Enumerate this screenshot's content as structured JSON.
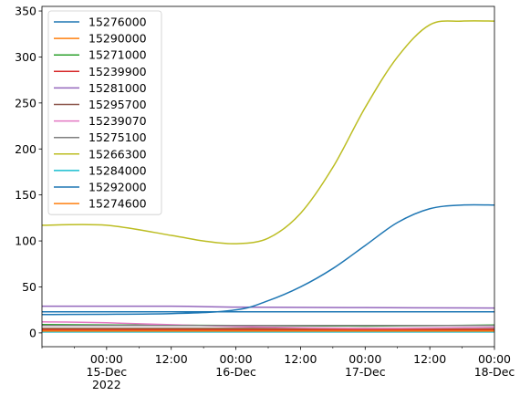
{
  "chart_data": {
    "type": "line",
    "title": "",
    "xlabel": "",
    "ylabel": "",
    "x_range": [
      "2022-12-14 12:00",
      "2022-12-18 00:00"
    ],
    "ylim": [
      -15,
      355
    ],
    "y_ticks": [
      0,
      50,
      100,
      150,
      200,
      250,
      300,
      350
    ],
    "y_tick_labels": [
      "0",
      "50",
      "100",
      "150",
      "200",
      "250",
      "300",
      "350"
    ],
    "x_ticks": [
      {
        "x": "2022-12-15 00:00",
        "lines": [
          "00:00",
          "15-Dec",
          "2022"
        ]
      },
      {
        "x": "2022-12-15 12:00",
        "lines": [
          "12:00"
        ]
      },
      {
        "x": "2022-12-16 00:00",
        "lines": [
          "00:00",
          "16-Dec"
        ]
      },
      {
        "x": "2022-12-16 12:00",
        "lines": [
          "12:00"
        ]
      },
      {
        "x": "2022-12-17 00:00",
        "lines": [
          "00:00",
          "17-Dec"
        ]
      },
      {
        "x": "2022-12-17 12:00",
        "lines": [
          "12:00"
        ]
      },
      {
        "x": "2022-12-18 00:00",
        "lines": [
          "00:00",
          "18-Dec"
        ]
      }
    ],
    "x_minor_ticks": [
      "2022-12-14 12:00",
      "2022-12-14 18:00",
      "2022-12-15 06:00",
      "2022-12-15 18:00",
      "2022-12-16 06:00",
      "2022-12-16 18:00",
      "2022-12-17 06:00",
      "2022-12-17 18:00"
    ],
    "legend": "upper-left",
    "grid": false,
    "series": [
      {
        "name": "15276000",
        "color": "#1f77b4",
        "x": [
          "2022-12-14 12:00",
          "2022-12-18 00:00"
        ],
        "y": [
          23,
          23
        ]
      },
      {
        "name": "15290000",
        "color": "#ff7f0e",
        "x": [
          "2022-12-14 12:00",
          "2022-12-18 00:00"
        ],
        "y": [
          4,
          4
        ]
      },
      {
        "name": "15271000",
        "color": "#2ca02c",
        "x": [
          "2022-12-14 12:00",
          "2022-12-16 00:00",
          "2022-12-17 00:00",
          "2022-12-18 00:00"
        ],
        "y": [
          9,
          8,
          7.5,
          8.5
        ]
      },
      {
        "name": "15239900",
        "color": "#d62728",
        "x": [
          "2022-12-14 12:00",
          "2022-12-18 00:00"
        ],
        "y": [
          3,
          3
        ]
      },
      {
        "name": "15281000",
        "color": "#9467bd",
        "x": [
          "2022-12-14 12:00",
          "2022-12-15 12:00",
          "2022-12-16 00:00",
          "2022-12-17 00:00",
          "2022-12-18 00:00"
        ],
        "y": [
          29,
          29,
          28,
          27.5,
          27
        ]
      },
      {
        "name": "15295700",
        "color": "#8c564b",
        "x": [
          "2022-12-14 12:00",
          "2022-12-18 00:00"
        ],
        "y": [
          5,
          5
        ]
      },
      {
        "name": "15239070",
        "color": "#e377c2",
        "x": [
          "2022-12-14 12:00",
          "2022-12-15 00:00",
          "2022-12-16 00:00",
          "2022-12-17 00:00",
          "2022-12-18 00:00"
        ],
        "y": [
          12,
          11,
          7,
          5,
          6
        ]
      },
      {
        "name": "15275100",
        "color": "#7f7f7f",
        "x": [
          "2022-12-14 12:00",
          "2022-12-18 00:00"
        ],
        "y": [
          8,
          8
        ]
      },
      {
        "name": "15266300",
        "color": "#bcbd22",
        "x": [
          "2022-12-14 12:00",
          "2022-12-15 00:00",
          "2022-12-15 12:00",
          "2022-12-15 18:00",
          "2022-12-16 00:00",
          "2022-12-16 06:00",
          "2022-12-16 12:00",
          "2022-12-16 18:00",
          "2022-12-17 00:00",
          "2022-12-17 06:00",
          "2022-12-17 12:00",
          "2022-12-17 18:00",
          "2022-12-18 00:00"
        ],
        "y": [
          117,
          117,
          106,
          100,
          97,
          103,
          130,
          180,
          245,
          300,
          335,
          339,
          339
        ]
      },
      {
        "name": "15284000",
        "color": "#17becf",
        "x": [
          "2022-12-14 12:00",
          "2022-12-18 00:00"
        ],
        "y": [
          1,
          1
        ]
      },
      {
        "name": "15292000",
        "color": "#1f77b4",
        "x": [
          "2022-12-14 12:00",
          "2022-12-15 12:00",
          "2022-12-16 00:00",
          "2022-12-16 06:00",
          "2022-12-16 12:00",
          "2022-12-16 18:00",
          "2022-12-17 00:00",
          "2022-12-17 06:00",
          "2022-12-17 12:00",
          "2022-12-17 18:00",
          "2022-12-18 00:00"
        ],
        "y": [
          20,
          21,
          25,
          35,
          50,
          70,
          95,
          120,
          135,
          139,
          139
        ]
      },
      {
        "name": "15274600",
        "color": "#ff7f0e",
        "x": [
          "2022-12-14 12:00",
          "2022-12-18 00:00"
        ],
        "y": [
          2,
          2
        ]
      }
    ]
  }
}
